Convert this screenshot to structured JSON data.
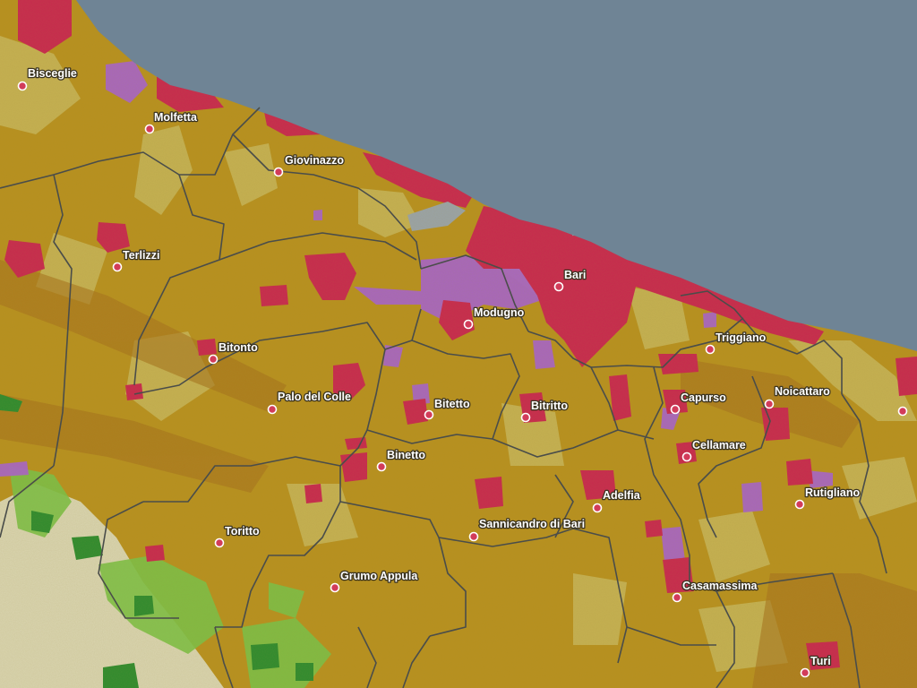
{
  "map": {
    "colors": {
      "sea": "#6f8495",
      "agricultural": "#b8901e",
      "crops_light": "#c7b65a",
      "urban_dense": "#c8284e",
      "urban": "#c23a6a",
      "industrial": "#a864c6",
      "forest": "#2e8b2e",
      "grassland": "#7cc046",
      "bare": "#d9d4b0",
      "boundary": "#4a4d4a"
    },
    "towns": [
      {
        "id": "bisceglie",
        "label": "Bisceglie"
      },
      {
        "id": "molfetta",
        "label": "Molfetta"
      },
      {
        "id": "giovinazzo",
        "label": "Giovinazzo"
      },
      {
        "id": "terlizzi",
        "label": "Terlizzi"
      },
      {
        "id": "bari",
        "label": "Bari"
      },
      {
        "id": "modugno",
        "label": "Modugno"
      },
      {
        "id": "triggiano",
        "label": "Triggiano"
      },
      {
        "id": "bitonto",
        "label": "Bitonto"
      },
      {
        "id": "palo-del-colle",
        "label": "Palo del Colle"
      },
      {
        "id": "bitetto",
        "label": "Bitetto"
      },
      {
        "id": "bitritto",
        "label": "Bitritto"
      },
      {
        "id": "capurso",
        "label": "Capurso"
      },
      {
        "id": "noicattaro",
        "label": "Noicattaro"
      },
      {
        "id": "cellamare",
        "label": "Cellamare"
      },
      {
        "id": "binetto",
        "label": "Binetto"
      },
      {
        "id": "adelfia",
        "label": "Adelfia"
      },
      {
        "id": "rutigliano",
        "label": "Rutigliano"
      },
      {
        "id": "toritto",
        "label": "Toritto"
      },
      {
        "id": "sannicandro-di-bari",
        "label": "Sannicandro di Bari"
      },
      {
        "id": "grumo-appula",
        "label": "Grumo Appula"
      },
      {
        "id": "casamassima",
        "label": "Casamassima"
      },
      {
        "id": "turi",
        "label": "Turi"
      },
      {
        "id": "conversano",
        "label": ""
      }
    ]
  }
}
